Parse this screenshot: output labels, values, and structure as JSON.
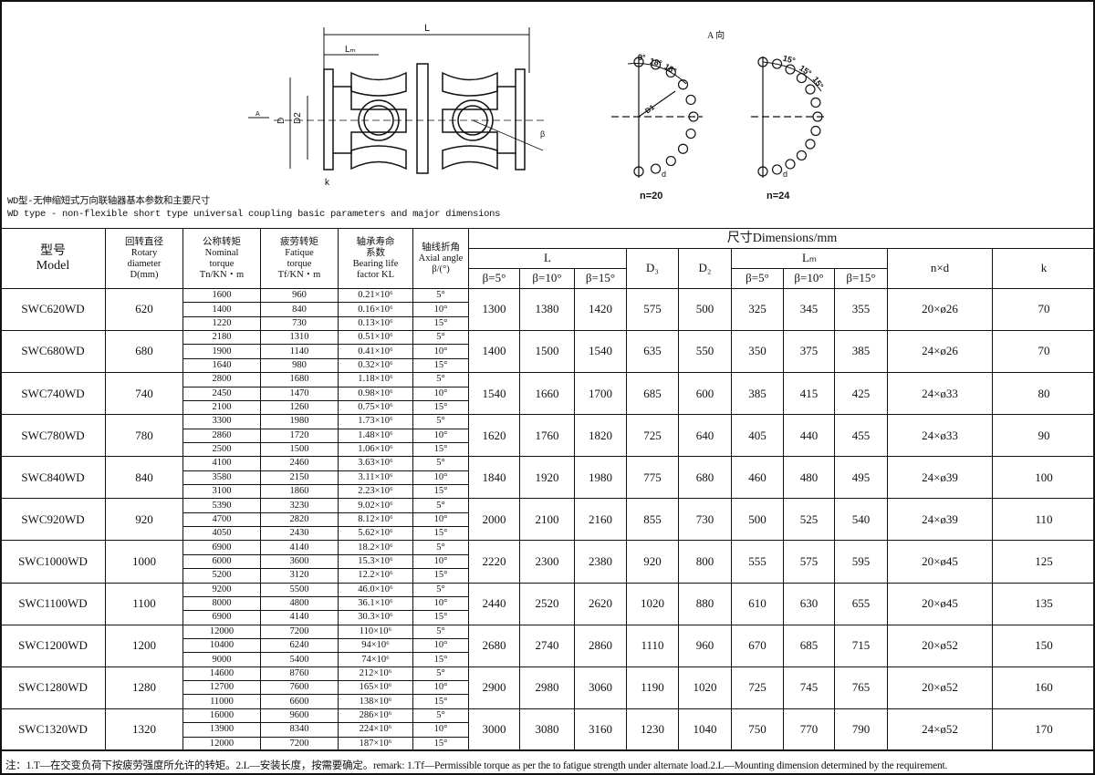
{
  "drawing": {
    "label_L": "L",
    "label_Lm": "Lₘ",
    "label_D": "D",
    "label_D2": "D2",
    "label_k": "k",
    "label_beta": "β",
    "label_A": "A",
    "view_title": "A 向",
    "n20": {
      "label": "n=20",
      "angles": [
        "9°",
        "18°",
        "18°"
      ],
      "d": "d",
      "D1": "D1"
    },
    "n24": {
      "label": "n=24",
      "angles": [
        "15°",
        "15°",
        "15°"
      ],
      "d": "d"
    }
  },
  "caption_cn": "WD型-无伸缩短式万向联轴器基本参数和主要尺寸",
  "caption_en": "WD type - non-flexible short type universal coupling basic parameters and major dimensions",
  "headers": {
    "model": [
      "型号",
      "Model"
    ],
    "rotary": [
      "回转直径",
      "Rotary",
      "diameter",
      "D(mm)"
    ],
    "nominal": [
      "公称转矩",
      "Nominal",
      "torque",
      "Tn/KN・m"
    ],
    "fatigue": [
      "疲劳转矩",
      "Fatique",
      "torque",
      "Tf/KN・m"
    ],
    "bearing": [
      "轴承寿命",
      "系数",
      "Bearing life",
      "factor  KL"
    ],
    "axial": [
      "轴线折角",
      "Axial angle",
      "β/(°)"
    ],
    "dimensions": "尺寸Dimensions/mm",
    "L": "L",
    "D3": "D₃",
    "D2": "D₂",
    "Lm": "Lₘ",
    "nxd": "n×d",
    "k": "k",
    "betas": [
      "β=5°",
      "β=10°",
      "β=15°"
    ]
  },
  "rows": [
    {
      "model": "SWC620WD",
      "D": "620",
      "tn": [
        "1600",
        "1400",
        "1220"
      ],
      "tf": [
        "960",
        "840",
        "730"
      ],
      "kl": [
        "0.21×10⁶",
        "0.16×10⁶",
        "0.13×10⁶"
      ],
      "L": [
        "1300",
        "1380",
        "1420"
      ],
      "D3": "575",
      "D2": "500",
      "Lm": [
        "325",
        "345",
        "355"
      ],
      "nxd": "20×ø26",
      "k": "70"
    },
    {
      "model": "SWC680WD",
      "D": "680",
      "tn": [
        "2180",
        "1900",
        "1640"
      ],
      "tf": [
        "1310",
        "1140",
        "980"
      ],
      "kl": [
        "0.51×10⁶",
        "0.41×10⁶",
        "0.32×10⁶"
      ],
      "L": [
        "1400",
        "1500",
        "1540"
      ],
      "D3": "635",
      "D2": "550",
      "Lm": [
        "350",
        "375",
        "385"
      ],
      "nxd": "24×ø26",
      "k": "70"
    },
    {
      "model": "SWC740WD",
      "D": "740",
      "tn": [
        "2800",
        "2450",
        "2100"
      ],
      "tf": [
        "1680",
        "1470",
        "1260"
      ],
      "kl": [
        "1.18×10⁶",
        "0.98×10⁶",
        "0.75×10⁶"
      ],
      "L": [
        "1540",
        "1660",
        "1700"
      ],
      "D3": "685",
      "D2": "600",
      "Lm": [
        "385",
        "415",
        "425"
      ],
      "nxd": "24×ø33",
      "k": "80"
    },
    {
      "model": "SWC780WD",
      "D": "780",
      "tn": [
        "3300",
        "2860",
        "2500"
      ],
      "tf": [
        "1980",
        "1720",
        "1500"
      ],
      "kl": [
        "1.73×10⁶",
        "1.48×10⁶",
        "1.06×10⁶"
      ],
      "L": [
        "1620",
        "1760",
        "1820"
      ],
      "D3": "725",
      "D2": "640",
      "Lm": [
        "405",
        "440",
        "455"
      ],
      "nxd": "24×ø33",
      "k": "90"
    },
    {
      "model": "SWC840WD",
      "D": "840",
      "tn": [
        "4100",
        "3580",
        "3100"
      ],
      "tf": [
        "2460",
        "2150",
        "1860"
      ],
      "kl": [
        "3.63×10⁶",
        "3.11×10⁶",
        "2.23×10⁶"
      ],
      "L": [
        "1840",
        "1920",
        "1980"
      ],
      "D3": "775",
      "D2": "680",
      "Lm": [
        "460",
        "480",
        "495"
      ],
      "nxd": "24×ø39",
      "k": "100"
    },
    {
      "model": "SWC920WD",
      "D": "920",
      "tn": [
        "5390",
        "4700",
        "4050"
      ],
      "tf": [
        "3230",
        "2820",
        "2430"
      ],
      "kl": [
        "9.02×10⁶",
        "8.12×10⁶",
        "5.62×10⁶"
      ],
      "L": [
        "2000",
        "2100",
        "2160"
      ],
      "D3": "855",
      "D2": "730",
      "Lm": [
        "500",
        "525",
        "540"
      ],
      "nxd": "24×ø39",
      "k": "110"
    },
    {
      "model": "SWC1000WD",
      "D": "1000",
      "tn": [
        "6900",
        "6000",
        "5200"
      ],
      "tf": [
        "4140",
        "3600",
        "3120"
      ],
      "kl": [
        "18.2×10⁶",
        "15.3×10⁶",
        "12.2×10⁶"
      ],
      "L": [
        "2220",
        "2300",
        "2380"
      ],
      "D3": "920",
      "D2": "800",
      "Lm": [
        "555",
        "575",
        "595"
      ],
      "nxd": "20×ø45",
      "k": "125"
    },
    {
      "model": "SWC1100WD",
      "D": "1100",
      "tn": [
        "9200",
        "8000",
        "6900"
      ],
      "tf": [
        "5500",
        "4800",
        "4140"
      ],
      "kl": [
        "46.0×10⁶",
        "36.1×10⁶",
        "30.3×10⁶"
      ],
      "L": [
        "2440",
        "2520",
        "2620"
      ],
      "D3": "1020",
      "D2": "880",
      "Lm": [
        "610",
        "630",
        "655"
      ],
      "nxd": "20×ø45",
      "k": "135"
    },
    {
      "model": "SWC1200WD",
      "D": "1200",
      "tn": [
        "12000",
        "10400",
        "9000"
      ],
      "tf": [
        "7200",
        "6240",
        "5400"
      ],
      "kl": [
        "110×10⁶",
        "94×10⁶",
        "74×10⁶"
      ],
      "L": [
        "2680",
        "2740",
        "2860"
      ],
      "D3": "1110",
      "D2": "960",
      "Lm": [
        "670",
        "685",
        "715"
      ],
      "nxd": "20×ø52",
      "k": "150"
    },
    {
      "model": "SWC1280WD",
      "D": "1280",
      "tn": [
        "14600",
        "12700",
        "11000"
      ],
      "tf": [
        "8760",
        "7600",
        "6600"
      ],
      "kl": [
        "212×10⁶",
        "165×10⁶",
        "138×10⁶"
      ],
      "L": [
        "2900",
        "2980",
        "3060"
      ],
      "D3": "1190",
      "D2": "1020",
      "Lm": [
        "725",
        "745",
        "765"
      ],
      "nxd": "20×ø52",
      "k": "160"
    },
    {
      "model": "SWC1320WD",
      "D": "1320",
      "tn": [
        "16000",
        "13900",
        "12000"
      ],
      "tf": [
        "9600",
        "8340",
        "7200"
      ],
      "kl": [
        "286×10⁶",
        "224×10⁶",
        "187×10⁶"
      ],
      "L": [
        "3000",
        "3080",
        "3160"
      ],
      "D3": "1230",
      "D2": "1040",
      "Lm": [
        "750",
        "770",
        "790"
      ],
      "nxd": "24×ø52",
      "k": "170"
    }
  ],
  "angles": [
    "5°",
    "10°",
    "15°"
  ],
  "footnote": "注：1.T—在交变负荷下按疲劳强度所允许的转矩。2.L—安装长度，按需要确定。remark: 1.Tf—Permissible torque as per the to fatigue strength under alternate load.2.L—Mounting dimension determined by the requirement."
}
